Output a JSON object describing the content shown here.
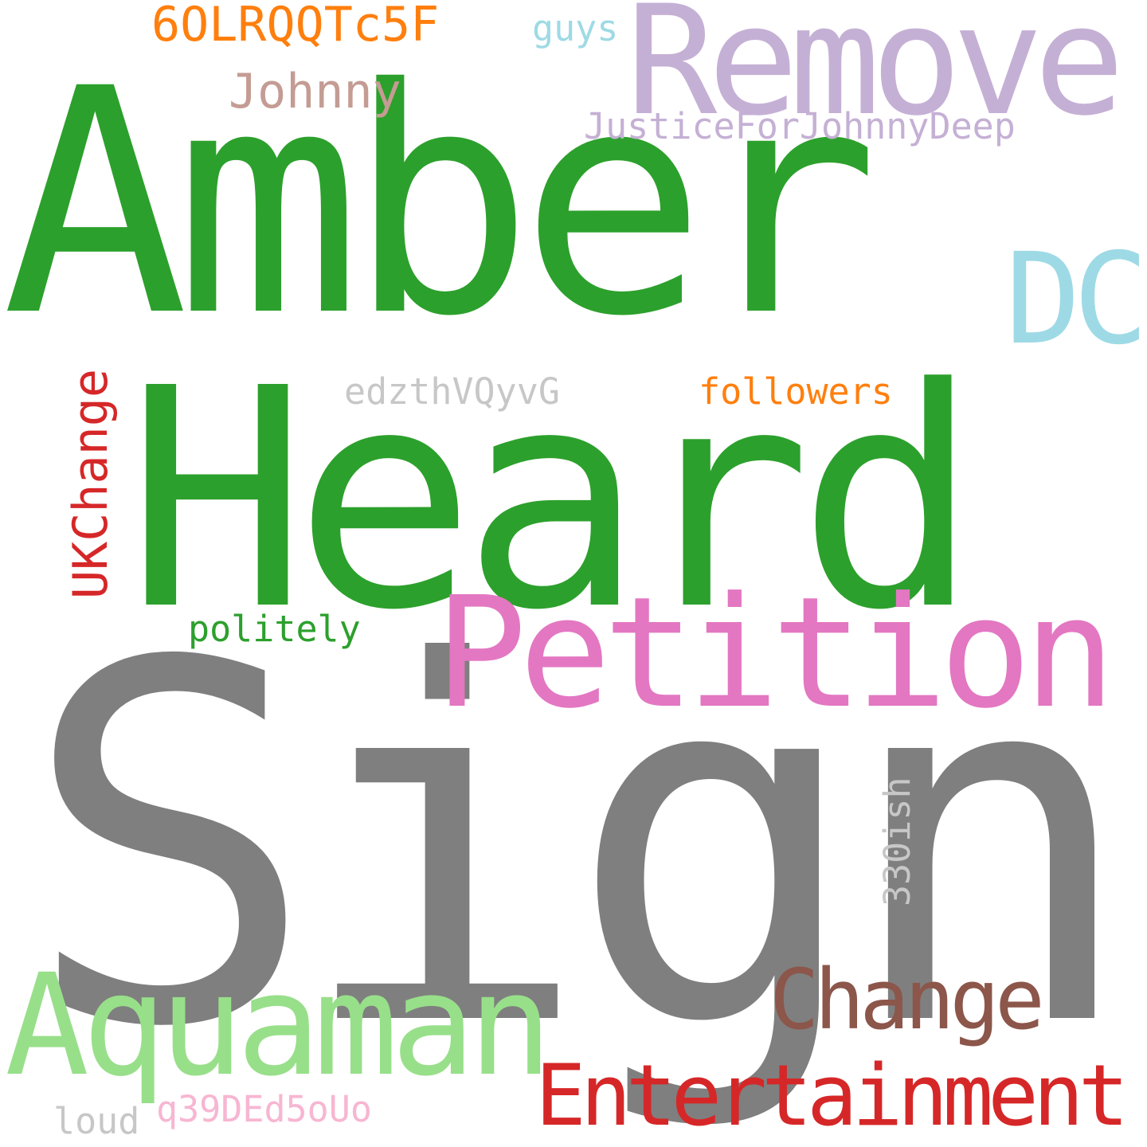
{
  "words": {
    "amber": "Amber",
    "sign": "Sign",
    "heard": "Heard",
    "remove": "Remove",
    "petition": "Petition",
    "aquaman": "Aquaman",
    "dc": "DC",
    "change": "Change",
    "entertainment": "Entertainment",
    "code_6olr": "6OLRQQTc5F",
    "johnny": "Johnny",
    "justice": "JusticeForJohnnyDeep",
    "guys": "guys",
    "ukchange": "UKChange",
    "code_edzth": "edzthVQyvG",
    "followers": "followers",
    "politely": "politely",
    "ish330": "330ish",
    "code_q39": "q39DEd5oUo",
    "loud": "loud"
  },
  "colors": {
    "green": "#2ca02c",
    "gray": "#7f7f7f",
    "lavender": "#c5b0d5",
    "pink": "#e377c2",
    "light_green": "#98df8a",
    "light_blue": "#9edae5",
    "brown": "#8c564b",
    "red": "#d62728",
    "orange": "#ff7f0e",
    "tan": "#c49c94",
    "light_gray": "#c7c7c7",
    "light_pink": "#f7b6d2",
    "background": "#ffffff"
  }
}
